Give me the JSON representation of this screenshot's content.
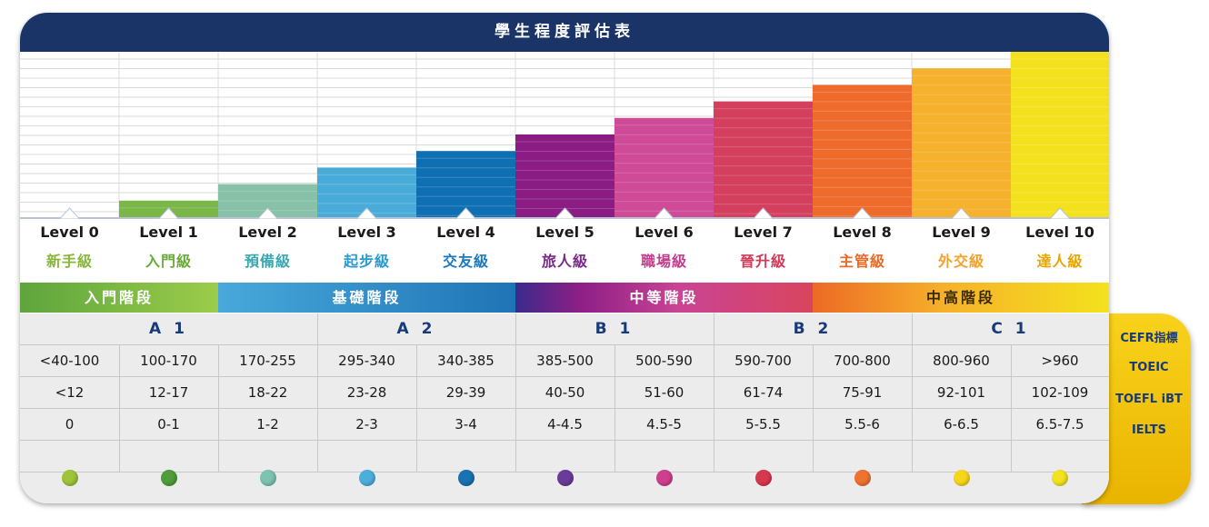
{
  "title": "學生程度評估表",
  "chart_data": {
    "type": "bar",
    "categories": [
      "Level 0",
      "Level 1",
      "Level 2",
      "Level 3",
      "Level 4",
      "Level 5",
      "Level 6",
      "Level 7",
      "Level 8",
      "Level 9",
      "Level 10"
    ],
    "values": [
      0,
      1,
      2,
      3,
      4,
      5,
      6,
      7,
      8,
      9,
      10
    ],
    "colors": [
      "#ffffff",
      "#7ab648",
      "#86c1a8",
      "#49acd8",
      "#0f6fb3",
      "#8a1c84",
      "#cf4a97",
      "#d43f5e",
      "#ef6b2c",
      "#f6b12d",
      "#f2e11c"
    ]
  },
  "levels": [
    {
      "name": "Level 0",
      "cn": "新手級",
      "color": "#88b53a"
    },
    {
      "name": "Level 1",
      "cn": "入門級",
      "color": "#6aab3a"
    },
    {
      "name": "Level 2",
      "cn": "預備級",
      "color": "#3aa8b0"
    },
    {
      "name": "Level 3",
      "cn": "起步級",
      "color": "#2a9ad0"
    },
    {
      "name": "Level 4",
      "cn": "交友級",
      "color": "#1e79bc"
    },
    {
      "name": "Level 5",
      "cn": "旅人級",
      "color": "#7a2a88"
    },
    {
      "name": "Level 6",
      "cn": "職場級",
      "color": "#c43d8c"
    },
    {
      "name": "Level 7",
      "cn": "晉升級",
      "color": "#d23a58"
    },
    {
      "name": "Level 8",
      "cn": "主管級",
      "color": "#ec6a26"
    },
    {
      "name": "Level 9",
      "cn": "外交級",
      "color": "#f3a12a"
    },
    {
      "name": "Level 10",
      "cn": "達人級",
      "color": "#e8a400"
    }
  ],
  "stages": [
    {
      "label": "入門階段",
      "background": "linear-gradient(90deg,#5da53c,#9ccc4a)"
    },
    {
      "label": "基礎階段",
      "background": "linear-gradient(90deg,#48a9db,#1f74b5)"
    },
    {
      "label": "中等階段",
      "background": "linear-gradient(90deg,#3a2a8c 0%,#8e1f86 22%,#c94494 55%,#d9455e 100%)"
    },
    {
      "label": "中高階段",
      "background": "linear-gradient(90deg,#ec6a26 0%,#f6b22a 45%,#f3e21d 100%)",
      "text_color": "#3a2a00"
    }
  ],
  "cefr": [
    "A 1",
    "A 2",
    "B 1",
    "B 2",
    "C 1"
  ],
  "side_labels": [
    "CEFR指標",
    "TOEIC",
    "TOEFL iBT",
    "IELTS"
  ],
  "scores": {
    "toeic": [
      "<40-100",
      "100-170",
      "170-255",
      "295-340",
      "340-385",
      "385-500",
      "500-590",
      "590-700",
      "700-800",
      "800-960",
      ">960"
    ],
    "toefl": [
      "<12",
      "12-17",
      "18-22",
      "23-28",
      "29-39",
      "40-50",
      "51-60",
      "61-74",
      "75-91",
      "92-101",
      "102-109"
    ],
    "ielts": [
      "0",
      "0-1",
      "1-2",
      "2-3",
      "3-4",
      "4-4.5",
      "4.5-5",
      "5-5.5",
      "5.5-6",
      "6-6.5",
      "6.5-7.5"
    ]
  },
  "dot_colors": [
    "#9dc43a",
    "#4f9d3a",
    "#7cc3b4",
    "#4daede",
    "#1872b4",
    "#6b3b9a",
    "#cf3f8f",
    "#d8384f",
    "#ef7330",
    "#f6d61b",
    "#f2e221"
  ]
}
